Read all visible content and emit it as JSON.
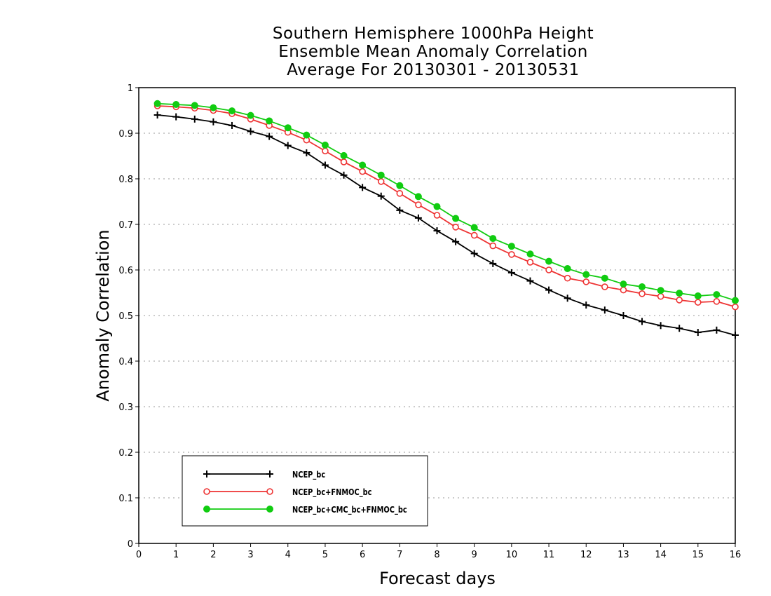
{
  "chart_data": {
    "type": "line",
    "title": [
      "Southern Hemisphere 1000hPa Height",
      "Ensemble Mean Anomaly Correlation",
      "Average For 20130301 - 20130531"
    ],
    "xlabel": "Forecast days",
    "ylabel": "Anomaly Correlation",
    "xlim": [
      0,
      16
    ],
    "ylim": [
      0,
      1
    ],
    "x_ticks": [
      0,
      1,
      2,
      3,
      4,
      5,
      6,
      7,
      8,
      9,
      10,
      11,
      12,
      13,
      14,
      15,
      16
    ],
    "y_ticks": [
      0,
      0.1,
      0.2,
      0.3,
      0.4,
      0.5,
      0.6,
      0.7,
      0.8,
      0.9,
      1
    ],
    "grid": "horizontal dotted",
    "legend_position": "bottom-left",
    "x": [
      0.5,
      1,
      1.5,
      2,
      2.5,
      3,
      3.5,
      4,
      4.5,
      5,
      5.5,
      6,
      6.5,
      7,
      7.5,
      8,
      8.5,
      9,
      9.5,
      10,
      10.5,
      11,
      11.5,
      12,
      12.5,
      13,
      13.5,
      14,
      14.5,
      15,
      15.5,
      16
    ],
    "series": [
      {
        "name": "NCEP_bc",
        "color": "#000000",
        "marker": "plus",
        "values": [
          0.94,
          0.936,
          0.931,
          0.925,
          0.917,
          0.904,
          0.893,
          0.873,
          0.857,
          0.83,
          0.808,
          0.781,
          0.762,
          0.731,
          0.714,
          0.686,
          0.662,
          0.636,
          0.614,
          0.594,
          0.576,
          0.556,
          0.538,
          0.523,
          0.512,
          0.5,
          0.487,
          0.478,
          0.472,
          0.463,
          0.468,
          0.457
        ]
      },
      {
        "name": "NCEP_bc+FNMOC_bc",
        "color": "#ee3333",
        "marker": "open-circle",
        "values": [
          0.96,
          0.958,
          0.955,
          0.95,
          0.943,
          0.931,
          0.917,
          0.902,
          0.885,
          0.861,
          0.837,
          0.816,
          0.794,
          0.768,
          0.743,
          0.72,
          0.694,
          0.676,
          0.653,
          0.634,
          0.617,
          0.6,
          0.582,
          0.574,
          0.563,
          0.556,
          0.548,
          0.542,
          0.534,
          0.529,
          0.531,
          0.519
        ]
      },
      {
        "name": "NCEP_bc+CMC_bc+FNMOC_bc",
        "color": "#11cc11",
        "marker": "filled-circle",
        "values": [
          0.965,
          0.963,
          0.961,
          0.956,
          0.949,
          0.939,
          0.927,
          0.912,
          0.896,
          0.874,
          0.851,
          0.83,
          0.808,
          0.785,
          0.761,
          0.739,
          0.713,
          0.693,
          0.669,
          0.652,
          0.635,
          0.619,
          0.603,
          0.59,
          0.582,
          0.569,
          0.563,
          0.555,
          0.549,
          0.543,
          0.546,
          0.533
        ]
      }
    ]
  }
}
